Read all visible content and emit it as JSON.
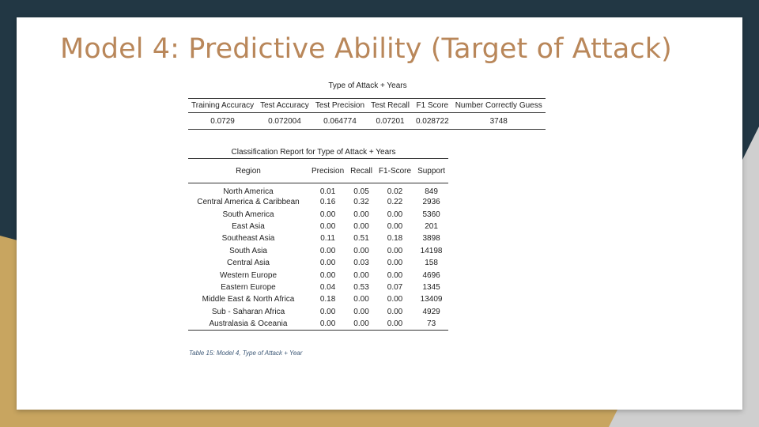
{
  "slide": {
    "title": "Model 4: Predictive Ability (Target of Attack)"
  },
  "table1": {
    "caption": "Type of Attack + Years",
    "headers": [
      "Training Accuracy",
      "Test Accuracy",
      "Test Precision",
      "Test Recall",
      "F1 Score",
      "Number Correctly Guess"
    ],
    "row": [
      "0.0729",
      "0.072004",
      "0.064774",
      "0.07201",
      "0.028722",
      "3748"
    ]
  },
  "table2": {
    "caption": "Classification Report for Type of Attack + Years",
    "headers": [
      "Region",
      "Precision",
      "Recall",
      "F1-Score",
      "Support"
    ],
    "rows": [
      [
        "North America",
        "0.01",
        "0.05",
        "0.02",
        "849"
      ],
      [
        "Central America & Caribbean",
        "0.16",
        "0.32",
        "0.22",
        "2936"
      ],
      [
        "South America",
        "0.00",
        "0.00",
        "0.00",
        "5360"
      ],
      [
        "East Asia",
        "0.00",
        "0.00",
        "0.00",
        "201"
      ],
      [
        "Southeast Asia",
        "0.11",
        "0.51",
        "0.18",
        "3898"
      ],
      [
        "South Asia",
        "0.00",
        "0.00",
        "0.00",
        "14198"
      ],
      [
        "Central Asia",
        "0.00",
        "0.03",
        "0.00",
        "158"
      ],
      [
        "Western Europe",
        "0.00",
        "0.00",
        "0.00",
        "4696"
      ],
      [
        "Eastern Europe",
        "0.04",
        "0.53",
        "0.07",
        "1345"
      ],
      [
        "Middle East & North Africa",
        "0.18",
        "0.00",
        "0.00",
        "13409"
      ],
      [
        "Sub - Saharan Africa",
        "0.00",
        "0.00",
        "0.00",
        "4929"
      ],
      [
        "Australasia & Oceania",
        "0.00",
        "0.00",
        "0.00",
        "73"
      ]
    ],
    "note": "Table 15: Model 4, Type of Attack + Year"
  },
  "colors": {
    "background_dark": "#223744",
    "accent_gold": "#c8a560",
    "title_color": "#b9875a"
  }
}
